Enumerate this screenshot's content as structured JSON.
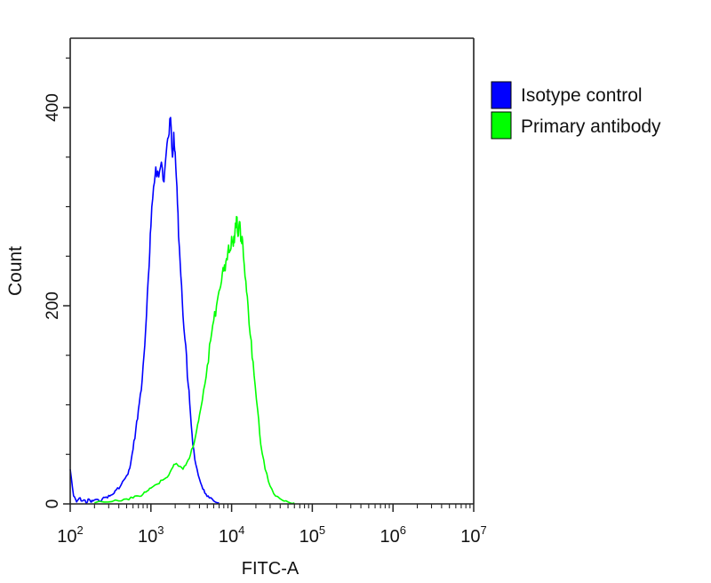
{
  "chart_data": {
    "type": "line",
    "title": "",
    "xlabel": "FITC-A",
    "ylabel": "Count",
    "x_scale": "log",
    "xlim": [
      100,
      10000000
    ],
    "ylim": [
      0,
      470
    ],
    "x_ticks": [
      {
        "value": 100,
        "base": "10",
        "exp": "2"
      },
      {
        "value": 1000,
        "base": "10",
        "exp": "3"
      },
      {
        "value": 10000,
        "base": "10",
        "exp": "4"
      },
      {
        "value": 100000,
        "base": "10",
        "exp": "5"
      },
      {
        "value": 1000000,
        "base": "10",
        "exp": "6"
      },
      {
        "value": 10000000,
        "base": "10",
        "exp": "7"
      }
    ],
    "y_ticks": [
      {
        "value": 0,
        "label": "0"
      },
      {
        "value": 200,
        "label": "200"
      },
      {
        "value": 400,
        "label": "400"
      }
    ],
    "legend_position": "top-right",
    "grid": false,
    "series": [
      {
        "name": "Isotype control",
        "color": "#0000ff",
        "x": [
          100,
          110,
          120,
          130,
          140,
          150,
          160,
          170,
          180,
          190,
          200,
          230,
          250,
          280,
          310,
          340,
          370,
          420,
          460,
          520,
          560,
          600,
          650,
          700,
          760,
          820,
          880,
          950,
          1000,
          1080,
          1150,
          1250,
          1350,
          1450,
          1550,
          1650,
          1750,
          1850,
          1920,
          2000,
          2100,
          2200,
          2350,
          2500,
          2700,
          2900,
          3100,
          3300,
          3600,
          4000,
          4400,
          4800,
          5300,
          6000,
          7000
        ],
        "y": [
          35,
          8,
          2,
          6,
          3,
          4,
          1,
          5,
          2,
          3,
          4,
          3,
          5,
          7,
          8,
          10,
          14,
          18,
          24,
          30,
          40,
          55,
          75,
          95,
          115,
          150,
          190,
          240,
          280,
          320,
          340,
          330,
          345,
          325,
          355,
          370,
          390,
          350,
          375,
          355,
          320,
          270,
          230,
          190,
          160,
          120,
          90,
          60,
          40,
          25,
          15,
          10,
          6,
          3,
          1
        ]
      },
      {
        "name": "Primary antibody",
        "color": "#00ff00",
        "x": [
          200,
          300,
          400,
          500,
          600,
          700,
          800,
          900,
          1000,
          1200,
          1400,
          1600,
          1800,
          2000,
          2200,
          2500,
          2800,
          3100,
          3400,
          3700,
          4000,
          4500,
          5000,
          5500,
          6000,
          6500,
          7000,
          7500,
          8000,
          8500,
          9000,
          9500,
          10000,
          10500,
          11000,
          11500,
          12000,
          12500,
          13000,
          13500,
          14000,
          15000,
          16000,
          17500,
          19000,
          21000,
          23000,
          26000,
          30000,
          35000,
          42000,
          50000,
          60000
        ],
        "y": [
          1,
          2,
          3,
          5,
          6,
          8,
          10,
          13,
          16,
          20,
          24,
          27,
          35,
          40,
          38,
          35,
          42,
          50,
          60,
          75,
          90,
          115,
          140,
          165,
          185,
          200,
          215,
          225,
          235,
          245,
          255,
          255,
          270,
          260,
          275,
          290,
          270,
          285,
          265,
          270,
          250,
          225,
          200,
          165,
          130,
          95,
          60,
          35,
          18,
          8,
          4,
          2,
          1
        ]
      }
    ]
  }
}
